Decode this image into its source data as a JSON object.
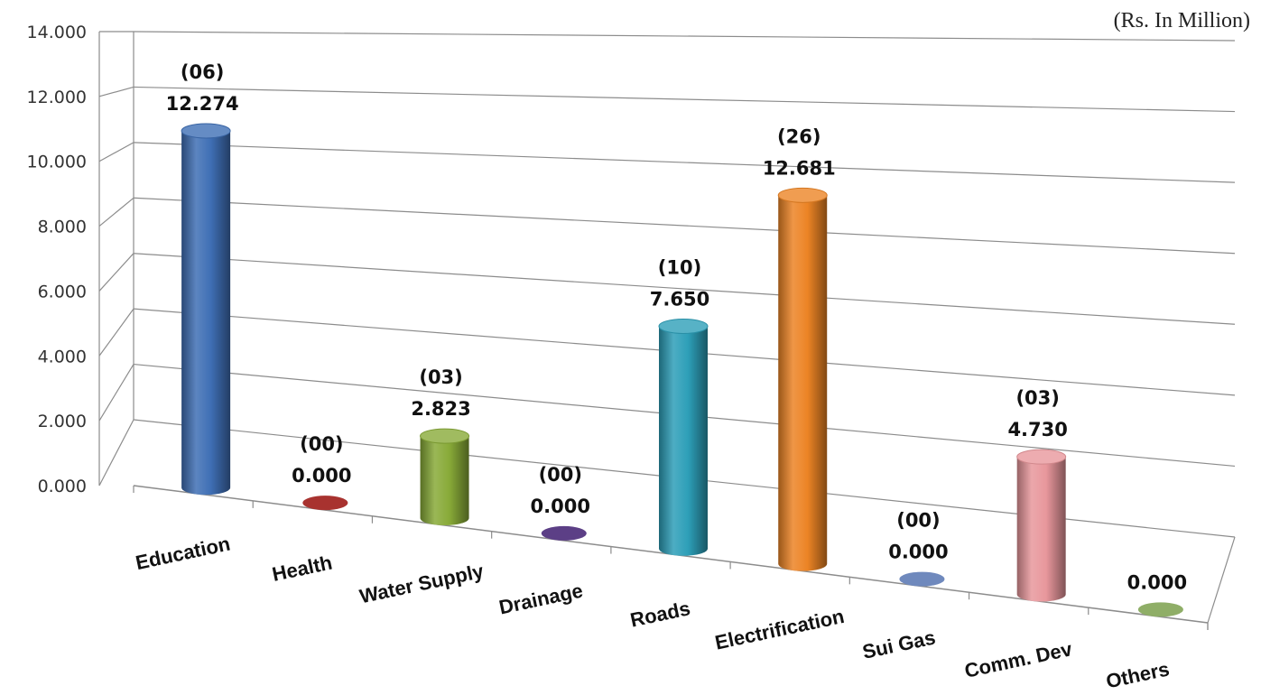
{
  "chart_data": {
    "type": "bar",
    "unit_note": "(Rs. In Million)",
    "categories": [
      "Education",
      "Health",
      "Water Supply",
      "Drainage",
      "Roads",
      "Electrification",
      "Sui Gas",
      "Comm. Dev",
      "Others"
    ],
    "values": [
      12.274,
      0.0,
      2.823,
      0.0,
      7.65,
      12.681,
      0.0,
      4.73,
      0.0
    ],
    "value_labels": [
      "12.274",
      "0.000",
      "2.823",
      "0.000",
      "7.650",
      "12.681",
      "0.000",
      "4.730",
      "0.000"
    ],
    "count_labels": [
      "(06)",
      "(00)",
      "(03)",
      "(00)",
      "(10)",
      "(26)",
      "(00)",
      "(03)",
      ""
    ],
    "colors": [
      "#3f6fb5",
      "#a8322f",
      "#88aa38",
      "#5c3f86",
      "#2d9fb8",
      "#ec8425",
      "#6f89bd",
      "#e8979c",
      "#8fae67"
    ],
    "ylim": [
      0,
      14
    ],
    "yticks": [
      "0.000",
      "2.000",
      "4.000",
      "6.000",
      "8.000",
      "10.000",
      "12.000",
      "14.000"
    ],
    "grid": true,
    "style": "3d-cylinder",
    "xlabel": "",
    "ylabel": ""
  }
}
